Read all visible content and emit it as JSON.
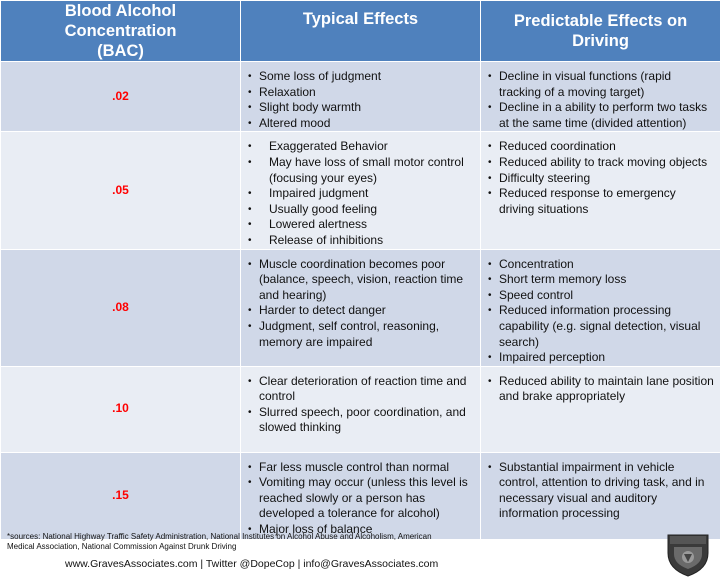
{
  "headers": {
    "bac": "Blood Alcohol Concentration (BAC)",
    "effects": "Typical Effects",
    "driving": "Predictable Effects on Driving"
  },
  "rows": [
    {
      "bac": ".02",
      "effects": [
        "Some loss of judgment",
        "Relaxation",
        "Slight body warmth",
        "Altered mood"
      ],
      "driving": [
        "Decline in visual functions (rapid tracking of a moving target)",
        "Decline in a ability to perform two tasks at the same time (divided attention)"
      ]
    },
    {
      "bac": ".05",
      "effects": [
        "Exaggerated Behavior",
        "May have loss of small motor control (focusing your eyes)",
        "Impaired judgment",
        "Usually good feeling",
        "Lowered alertness",
        "Release of inhibitions"
      ],
      "driving": [
        "Reduced coordination",
        "Reduced ability to track moving objects",
        "Difficulty steering",
        "Reduced response to emergency driving situations"
      ]
    },
    {
      "bac": ".08",
      "effects": [
        "Muscle coordination becomes poor (balance, speech, vision, reaction time and hearing)",
        "Harder to detect danger",
        "Judgment, self control, reasoning, memory are impaired"
      ],
      "driving": [
        "Concentration",
        "Short term memory loss",
        "Speed control",
        "Reduced information processing capability (e.g. signal detection, visual search)",
        "Impaired perception"
      ]
    },
    {
      "bac": ".10",
      "effects": [
        "Clear deterioration of reaction time and control",
        "Slurred speech, poor coordination, and slowed thinking"
      ],
      "driving": [
        "Reduced ability to maintain lane position and brake appropriately"
      ]
    },
    {
      "bac": ".15",
      "effects": [
        "Far less muscle control than normal",
        "Vomiting may occur (unless this level is reached slowly or a person has developed a tolerance for alcohol)",
        "Major loss of balance"
      ],
      "driving": [
        "Substantial impairment in vehicle control, attention to driving task, and in necessary visual and auditory information processing"
      ]
    }
  ],
  "footer": {
    "sources": "*sources: National Highway Traffic Safety Administration, National Institutes on Alcohol Abuse and Alcoholism, American Medical Association, National Commission Against Drunk Driving",
    "contact": "www.GravesAssociates.com | Twitter @DopeCop | info@GravesAssociates.com",
    "logo_text": "GRAVES"
  },
  "colors": {
    "header_bg": "#4f81bd",
    "row_dark": "#d0d8e8",
    "row_light": "#e9edf4",
    "bac_value": "#ff0000"
  }
}
